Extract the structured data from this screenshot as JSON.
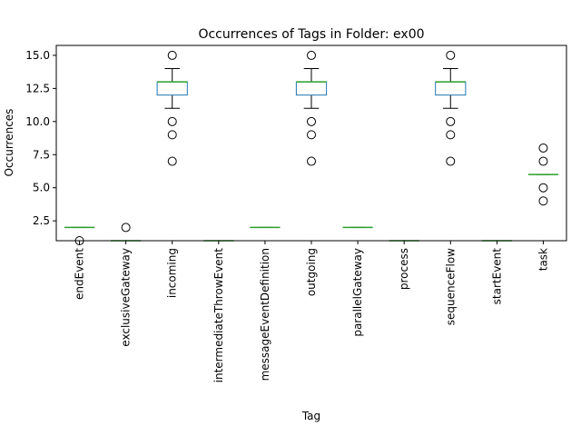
{
  "chart_data": {
    "type": "box",
    "title": "Occurrences of Tags in Folder: ex00",
    "xlabel": "Tag",
    "ylabel": "Occurrences",
    "ylim": [
      1.0,
      15.75
    ],
    "yticks": [
      2.5,
      5.0,
      7.5,
      10.0,
      12.5,
      15.0
    ],
    "ytick_labels": [
      "2.5",
      "5.0",
      "7.5",
      "10.0",
      "12.5",
      "15.0"
    ],
    "grid": false,
    "colors": {
      "box": "#1f77b4",
      "median": "#2ca02c",
      "whisker": "#000000",
      "flier": "#000000"
    },
    "categories": [
      "endEvent",
      "exclusiveGateway",
      "incoming",
      "intermediateThrowEvent",
      "messageEventDefinition",
      "outgoing",
      "parallelGateway",
      "process",
      "sequenceFlow",
      "startEvent",
      "task"
    ],
    "boxes": [
      {
        "name": "endEvent",
        "q1": 2,
        "median": 2,
        "q3": 2,
        "whislo": 2,
        "whishi": 2,
        "fliers": [
          1
        ]
      },
      {
        "name": "exclusiveGateway",
        "q1": 1,
        "median": 1,
        "q3": 1,
        "whislo": 1,
        "whishi": 1,
        "fliers": [
          2
        ]
      },
      {
        "name": "incoming",
        "q1": 12,
        "median": 13,
        "q3": 13,
        "whislo": 11,
        "whishi": 14,
        "fliers": [
          7,
          9,
          10,
          15
        ]
      },
      {
        "name": "intermediateThrowEvent",
        "q1": 1,
        "median": 1,
        "q3": 1,
        "whislo": 1,
        "whishi": 1,
        "fliers": []
      },
      {
        "name": "messageEventDefinition",
        "q1": 2,
        "median": 2,
        "q3": 2,
        "whislo": 2,
        "whishi": 2,
        "fliers": []
      },
      {
        "name": "outgoing",
        "q1": 12,
        "median": 13,
        "q3": 13,
        "whislo": 11,
        "whishi": 14,
        "fliers": [
          7,
          9,
          10,
          15
        ]
      },
      {
        "name": "parallelGateway",
        "q1": 2,
        "median": 2,
        "q3": 2,
        "whislo": 2,
        "whishi": 2,
        "fliers": []
      },
      {
        "name": "process",
        "q1": 1,
        "median": 1,
        "q3": 1,
        "whislo": 1,
        "whishi": 1,
        "fliers": []
      },
      {
        "name": "sequenceFlow",
        "q1": 12,
        "median": 13,
        "q3": 13,
        "whislo": 11,
        "whishi": 14,
        "fliers": [
          7,
          9,
          10,
          15
        ]
      },
      {
        "name": "startEvent",
        "q1": 1,
        "median": 1,
        "q3": 1,
        "whislo": 1,
        "whishi": 1,
        "fliers": []
      },
      {
        "name": "task",
        "q1": 6,
        "median": 6,
        "q3": 6,
        "whislo": 6,
        "whishi": 6,
        "fliers": [
          4,
          5,
          7,
          8
        ]
      }
    ]
  }
}
